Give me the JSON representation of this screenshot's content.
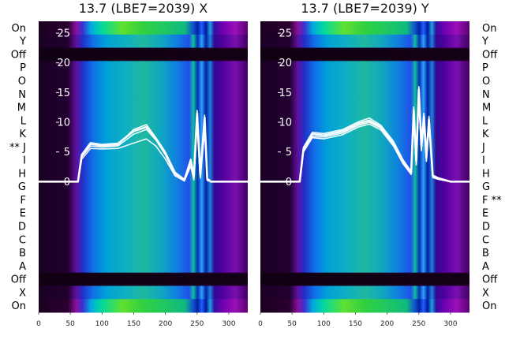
{
  "chart_data": [
    {
      "type": "line",
      "title": "13.7 (LBE7=2039) X",
      "xlabel": "",
      "ylabel": "",
      "xlim": [
        0,
        330
      ],
      "ylim": [
        -22,
        27
      ],
      "x_ticks": [
        "0",
        "50",
        "100",
        "150",
        "200",
        "250",
        "300"
      ],
      "y_ticks": [
        "0",
        "5",
        "10",
        "15",
        "20",
        "25"
      ],
      "row_labels": [
        "On",
        "Y",
        "Off",
        "P",
        "O",
        "N",
        "M",
        "L",
        "K",
        "** J",
        "I",
        "H",
        "G",
        "F",
        "E",
        "D",
        "C",
        "B",
        "A",
        "Off",
        "X",
        "On"
      ],
      "heatmap_background": true,
      "series": [
        {
          "x": [
            0,
            62,
            68,
            82,
            100,
            125,
            150,
            170,
            185,
            200,
            215,
            230,
            240,
            245,
            250,
            255,
            262,
            266,
            272,
            290,
            330
          ],
          "y": [
            0,
            0,
            4.5,
            6.5,
            6.2,
            6.4,
            8.5,
            9.2,
            7.2,
            4.8,
            1.5,
            0.3,
            3.6,
            0.8,
            11.5,
            1.2,
            10.8,
            0.5,
            0,
            0,
            0
          ]
        },
        {
          "x": [
            0,
            62,
            68,
            82,
            100,
            125,
            150,
            170,
            185,
            200,
            215,
            230,
            240,
            245,
            250,
            255,
            262,
            266,
            272,
            290,
            330
          ],
          "y": [
            0,
            0,
            4.2,
            6.0,
            5.8,
            6.0,
            8.0,
            8.8,
            7.0,
            4.5,
            1.2,
            0.2,
            3.2,
            0.5,
            10.5,
            0.9,
            9.8,
            0.3,
            0,
            0,
            0
          ]
        },
        {
          "x": [
            0,
            62,
            68,
            82,
            100,
            125,
            150,
            170,
            185,
            200,
            215,
            230,
            240,
            245,
            250,
            255,
            262,
            266,
            272,
            290,
            330
          ],
          "y": [
            0,
            0,
            3.8,
            5.6,
            5.5,
            5.6,
            6.5,
            7.2,
            6.0,
            3.8,
            1.0,
            0.1,
            2.6,
            0.3,
            9.5,
            0.6,
            8.6,
            0.2,
            0,
            0,
            0
          ]
        },
        {
          "x": [
            0,
            62,
            68,
            82,
            100,
            125,
            150,
            170,
            185,
            200,
            215,
            230,
            240,
            245,
            250,
            255,
            262,
            266,
            272,
            290,
            330
          ],
          "y": [
            0,
            0,
            4.4,
            6.3,
            6.0,
            6.2,
            8.8,
            9.6,
            7.4,
            5.0,
            1.6,
            0.4,
            3.8,
            0.9,
            12.0,
            1.3,
            11.2,
            0.5,
            0,
            0,
            0
          ]
        }
      ]
    },
    {
      "type": "line",
      "title": "13.7 (LBE7=2039) Y",
      "xlabel": "",
      "ylabel": "",
      "xlim": [
        0,
        330
      ],
      "ylim": [
        -22,
        27
      ],
      "x_ticks": [
        "0",
        "50",
        "100",
        "150",
        "200",
        "250",
        "300"
      ],
      "y_ticks": [
        "0",
        "5",
        "10",
        "15",
        "20",
        "25"
      ],
      "row_labels": [
        "On",
        "Y",
        "Off",
        "P",
        "O",
        "N",
        "M",
        "L",
        "K",
        "J",
        "I",
        "H",
        "G",
        "F **",
        "E",
        "D",
        "C",
        "B",
        "A",
        "Off",
        "X",
        "On"
      ],
      "heatmap_background": true,
      "series": [
        {
          "x": [
            0,
            62,
            68,
            82,
            100,
            130,
            155,
            172,
            190,
            210,
            225,
            238,
            242,
            246,
            250,
            254,
            258,
            262,
            266,
            272,
            280,
            300,
            330
          ],
          "y": [
            0,
            0,
            5.5,
            8.0,
            7.8,
            8.5,
            9.8,
            10.3,
            9.2,
            6.5,
            3.5,
            1.5,
            12.0,
            3.5,
            15.5,
            6.0,
            11.0,
            4.0,
            10.5,
            1.0,
            0.6,
            0,
            0
          ]
        },
        {
          "x": [
            0,
            62,
            68,
            82,
            100,
            130,
            155,
            172,
            190,
            210,
            225,
            238,
            242,
            246,
            250,
            254,
            258,
            262,
            266,
            272,
            280,
            300,
            330
          ],
          "y": [
            0,
            0,
            5.2,
            7.6,
            7.5,
            8.2,
            9.5,
            10.0,
            9.0,
            6.2,
            3.2,
            1.3,
            11.0,
            3.0,
            14.5,
            5.5,
            10.2,
            3.6,
            9.8,
            0.8,
            0.5,
            0,
            0
          ]
        },
        {
          "x": [
            0,
            62,
            68,
            82,
            100,
            130,
            155,
            172,
            190,
            210,
            225,
            238,
            242,
            246,
            250,
            254,
            258,
            262,
            266,
            272,
            280,
            300,
            330
          ],
          "y": [
            0,
            0,
            5.8,
            8.3,
            8.1,
            8.8,
            10.1,
            10.7,
            9.5,
            6.8,
            3.7,
            1.7,
            12.6,
            3.8,
            16.0,
            6.3,
            11.5,
            4.3,
            11.0,
            1.1,
            0.7,
            0,
            0
          ]
        },
        {
          "x": [
            0,
            62,
            68,
            82,
            100,
            130,
            155,
            172,
            190,
            210,
            225,
            238,
            242,
            246,
            250,
            254,
            258,
            262,
            266,
            272,
            280,
            300,
            330
          ],
          "y": [
            0,
            0,
            5.0,
            7.4,
            7.2,
            7.9,
            9.2,
            9.7,
            8.7,
            6.0,
            3.0,
            1.2,
            10.5,
            2.8,
            13.8,
            5.2,
            9.8,
            3.4,
            9.5,
            0.7,
            0.4,
            0,
            0
          ]
        }
      ]
    }
  ]
}
